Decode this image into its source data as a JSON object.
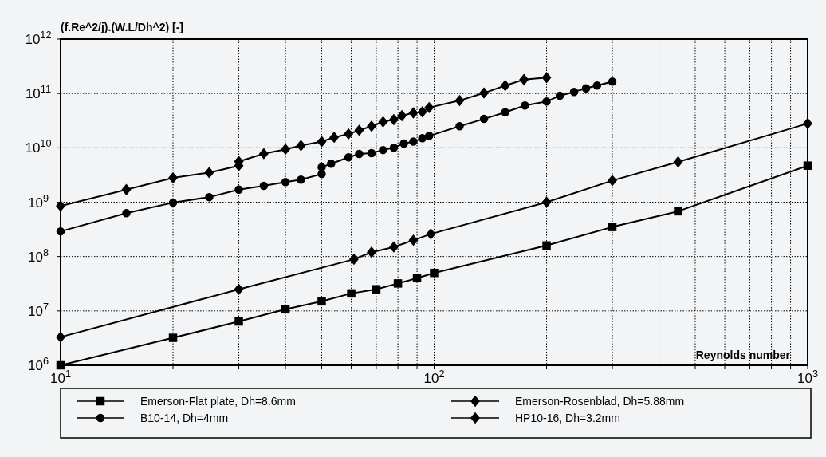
{
  "chart_data": {
    "type": "line",
    "ylabel": "(f.Re^2/j).(W.L/Dh^2) [-]",
    "xlabel": "Reynolds number",
    "log": "xy",
    "grid": true,
    "legend": "bottom",
    "line_style": "solid",
    "xlim": [
      10,
      1000
    ],
    "ylim": [
      1000000,
      1000000000000
    ],
    "xticks": [
      {
        "value": 10,
        "label": "10$^{1}$"
      },
      {
        "value": 20,
        "label": null
      },
      {
        "value": 30,
        "label": null
      },
      {
        "value": 40,
        "label": null
      },
      {
        "value": 50,
        "label": null
      },
      {
        "value": 60,
        "label": null
      },
      {
        "value": 70,
        "label": null
      },
      {
        "value": 80,
        "label": null
      },
      {
        "value": 90,
        "label": null
      },
      {
        "value": 100,
        "label": "10$^{2}$"
      },
      {
        "value": 200,
        "label": null
      },
      {
        "value": 300,
        "label": null
      },
      {
        "value": 400,
        "label": null
      },
      {
        "value": 500,
        "label": null
      },
      {
        "value": 600,
        "label": null
      },
      {
        "value": 700,
        "label": null
      },
      {
        "value": 800,
        "label": null
      },
      {
        "value": 900,
        "label": null
      },
      {
        "value": 1000,
        "label": "10$^{3}$"
      }
    ],
    "yticks": [
      {
        "value": 1000000,
        "label": "10$^{6}$"
      },
      {
        "value": 10000000,
        "label": "10$^{7}$"
      },
      {
        "value": 100000000,
        "label": "10$^{8}$"
      },
      {
        "value": 1000000000,
        "label": "10$^{9}$"
      },
      {
        "value": 10000000000,
        "label": "10$^{10}$"
      },
      {
        "value": 100000000000,
        "label": "10$^{11}$"
      },
      {
        "value": 1000000000000,
        "label": "10$^{12}$"
      }
    ],
    "series": [
      {
        "name": "Emerson-Flat plate, Dh=8.6mm",
        "color": "#000000",
        "marker": "square",
        "x": [
          10,
          20,
          30,
          40,
          50,
          60,
          70,
          80,
          90,
          100,
          200,
          300,
          450,
          1000
        ],
        "values": [
          1000000,
          3200000,
          6400000,
          10700000,
          15000000,
          21000000,
          25000000,
          32000000,
          40000000,
          50000000,
          160000000,
          350000000,
          680000000,
          4700000000
        ]
      },
      {
        "name": "Emerson-Rosenblad, Dh=5.88mm",
        "color": "#000000",
        "marker": "diamond",
        "x": [
          10,
          30,
          61,
          68,
          78,
          88,
          98,
          200,
          300,
          450,
          1000
        ],
        "values": [
          3300000,
          25000000,
          89000000,
          120000000,
          150000000,
          200000000,
          260000000,
          1000000000,
          2500000000,
          5500000000,
          28000000000
        ]
      },
      {
        "name": "B10-14, Dh=4mm",
        "color": "#000000",
        "marker": "circle",
        "x": [
          10,
          15,
          20,
          25,
          30,
          35,
          40,
          44,
          50,
          50,
          53,
          59,
          63,
          68,
          73,
          78,
          83,
          88,
          93,
          97,
          117,
          136,
          155,
          175,
          200,
          217,
          237,
          255,
          273,
          300
        ],
        "values": [
          290000000,
          630000000,
          980000000,
          1240000000,
          1700000000,
          2000000000,
          2350000000,
          2600000000,
          3300000000,
          4400000000,
          5100000000,
          6700000000,
          7700000000,
          8000000000,
          9100000000,
          10000000000,
          12000000000,
          13000000000,
          15000000000,
          16600000000,
          25000000000,
          34000000000,
          45000000000,
          60000000000,
          71000000000,
          91000000000,
          107000000000,
          124000000000,
          140000000000,
          165000000000
        ]
      },
      {
        "name": "HP10-16, Dh=3.2mm",
        "color": "#000000",
        "marker": "diamond",
        "x": [
          10,
          15,
          20,
          25,
          30,
          30,
          35,
          40,
          44,
          50,
          54,
          59,
          63,
          68,
          73,
          78,
          82,
          88,
          93,
          97,
          117,
          136,
          155,
          174,
          200
        ],
        "values": [
          850000000,
          1700000000,
          2800000000,
          3500000000,
          4700000000,
          5600000000,
          7800000000,
          9400000000,
          11000000000,
          13000000000,
          15600000000,
          18000000000,
          21000000000,
          25000000000,
          30000000000,
          33000000000,
          39000000000,
          44000000000,
          46000000000,
          55000000000,
          74000000000,
          102000000000,
          140000000000,
          180000000000,
          196000000000
        ]
      }
    ]
  }
}
